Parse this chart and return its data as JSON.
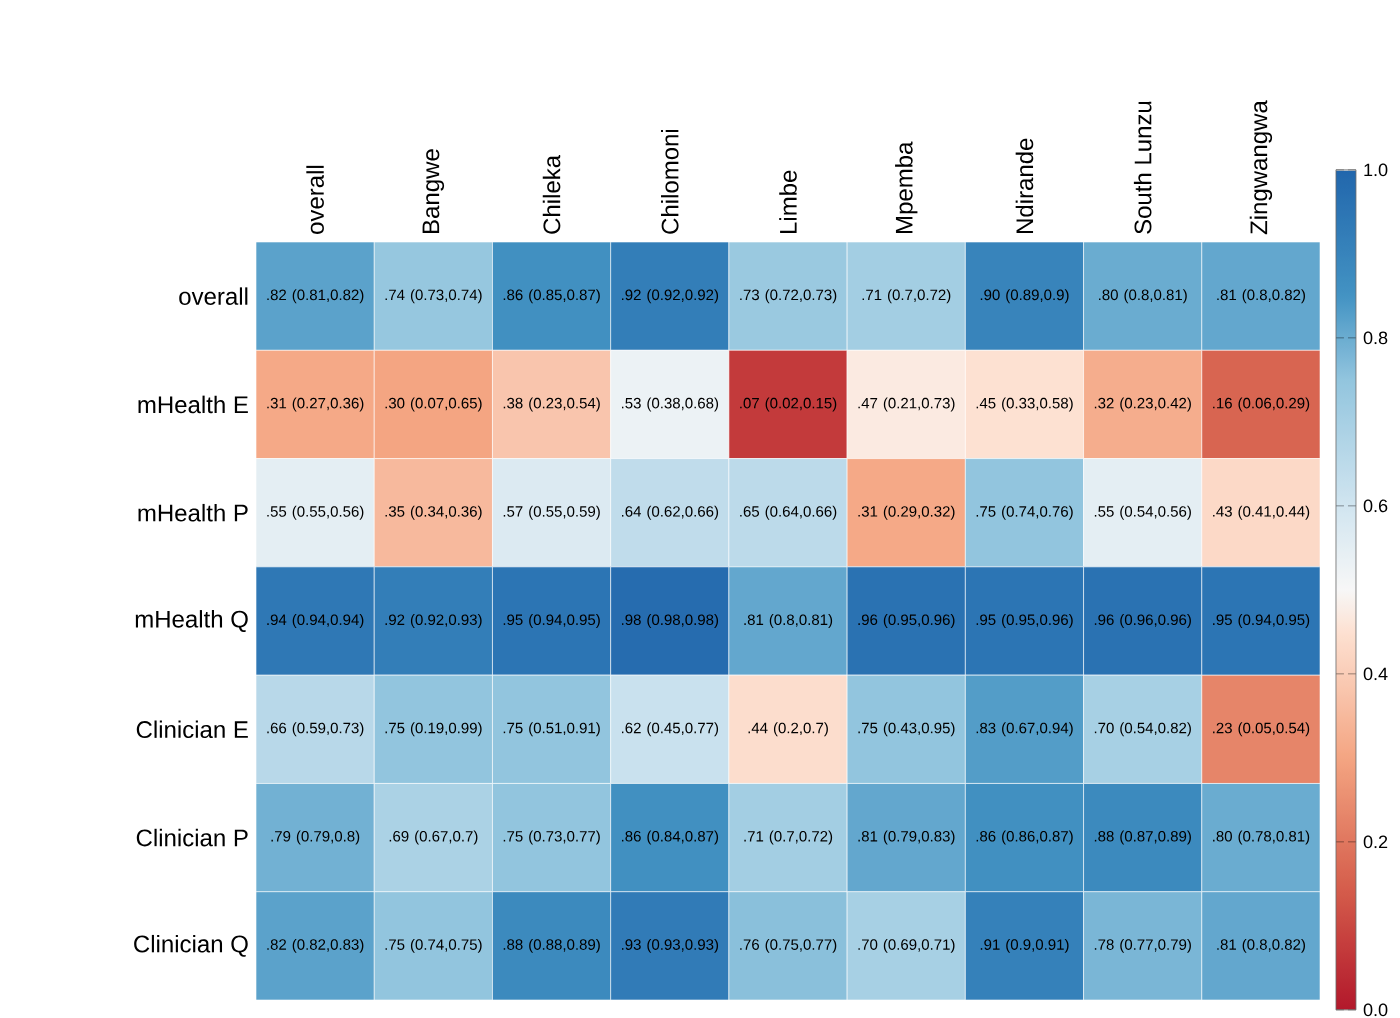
{
  "chart_data": {
    "type": "heatmap",
    "categories": [
      "overall",
      "Bangwe",
      "Chileka",
      "Chilomoni",
      "Limbe",
      "Mpemba",
      "Ndirande",
      "South Lunzu",
      "Zingwangwa"
    ],
    "y_categories": [
      "overall",
      "mHealth E",
      "mHealth P",
      "mHealth Q",
      "Clinician E",
      "Clinician P",
      "Clinician Q"
    ],
    "cells": [
      [
        0.82,
        0.74,
        0.86,
        0.92,
        0.73,
        0.71,
        0.9,
        0.8,
        0.81
      ],
      [
        0.31,
        0.3,
        0.38,
        0.53,
        0.07,
        0.47,
        0.45,
        0.32,
        0.16
      ],
      [
        0.55,
        0.35,
        0.57,
        0.64,
        0.65,
        0.31,
        0.75,
        0.55,
        0.43
      ],
      [
        0.94,
        0.92,
        0.95,
        0.98,
        0.81,
        0.96,
        0.95,
        0.96,
        0.95
      ],
      [
        0.66,
        0.75,
        0.75,
        0.62,
        0.44,
        0.75,
        0.83,
        0.7,
        0.23
      ],
      [
        0.79,
        0.69,
        0.75,
        0.86,
        0.71,
        0.81,
        0.86,
        0.88,
        0.8
      ],
      [
        0.82,
        0.75,
        0.88,
        0.93,
        0.76,
        0.7,
        0.91,
        0.78,
        0.81
      ]
    ],
    "cell_labels": [
      [
        ".82 (0.81,0.82)",
        ".74 (0.73,0.74)",
        ".86 (0.85,0.87)",
        ".92 (0.92,0.92)",
        ".73 (0.72,0.73)",
        ".71 (0.7,0.72)",
        ".90 (0.89,0.9)",
        ".80 (0.8,0.81)",
        ".81 (0.8,0.82)"
      ],
      [
        ".31 (0.27,0.36)",
        ".30 (0.07,0.65)",
        ".38 (0.23,0.54)",
        ".53 (0.38,0.68)",
        ".07 (0.02,0.15)",
        ".47 (0.21,0.73)",
        ".45 (0.33,0.58)",
        ".32 (0.23,0.42)",
        ".16 (0.06,0.29)"
      ],
      [
        ".55 (0.55,0.56)",
        ".35 (0.34,0.36)",
        ".57 (0.55,0.59)",
        ".64 (0.62,0.66)",
        ".65 (0.64,0.66)",
        ".31 (0.29,0.32)",
        ".75 (0.74,0.76)",
        ".55 (0.54,0.56)",
        ".43 (0.41,0.44)"
      ],
      [
        ".94 (0.94,0.94)",
        ".92 (0.92,0.93)",
        ".95 (0.94,0.95)",
        ".98 (0.98,0.98)",
        ".81 (0.8,0.81)",
        ".96 (0.95,0.96)",
        ".95 (0.95,0.96)",
        ".96 (0.96,0.96)",
        ".95 (0.94,0.95)"
      ],
      [
        ".66 (0.59,0.73)",
        ".75 (0.19,0.99)",
        ".75 (0.51,0.91)",
        ".62 (0.45,0.77)",
        ".44 (0.2,0.7)",
        ".75 (0.43,0.95)",
        ".83 (0.67,0.94)",
        ".70 (0.54,0.82)",
        ".23 (0.05,0.54)"
      ],
      [
        ".79 (0.79,0.8)",
        ".69 (0.67,0.7)",
        ".75 (0.73,0.77)",
        ".86 (0.84,0.87)",
        ".71 (0.7,0.72)",
        ".81 (0.79,0.83)",
        ".86 (0.86,0.87)",
        ".88 (0.87,0.89)",
        ".80 (0.78,0.81)"
      ],
      [
        ".82 (0.82,0.83)",
        ".75 (0.74,0.75)",
        ".88 (0.88,0.89)",
        ".93 (0.93,0.93)",
        ".76 (0.75,0.77)",
        ".70 (0.69,0.71)",
        ".91 (0.9,0.91)",
        ".78 (0.77,0.79)",
        ".81 (0.8,0.82)"
      ]
    ],
    "clim": [
      0,
      1
    ],
    "cticks": [
      {
        "value": 0,
        "label": "0.0"
      },
      {
        "value": 0.2,
        "label": "0.2"
      },
      {
        "value": 0.4,
        "label": "0.4"
      },
      {
        "value": 0.6,
        "label": "0.6"
      },
      {
        "value": 0.8,
        "label": "0.8"
      },
      {
        "value": 1,
        "label": "1.0"
      }
    ]
  }
}
